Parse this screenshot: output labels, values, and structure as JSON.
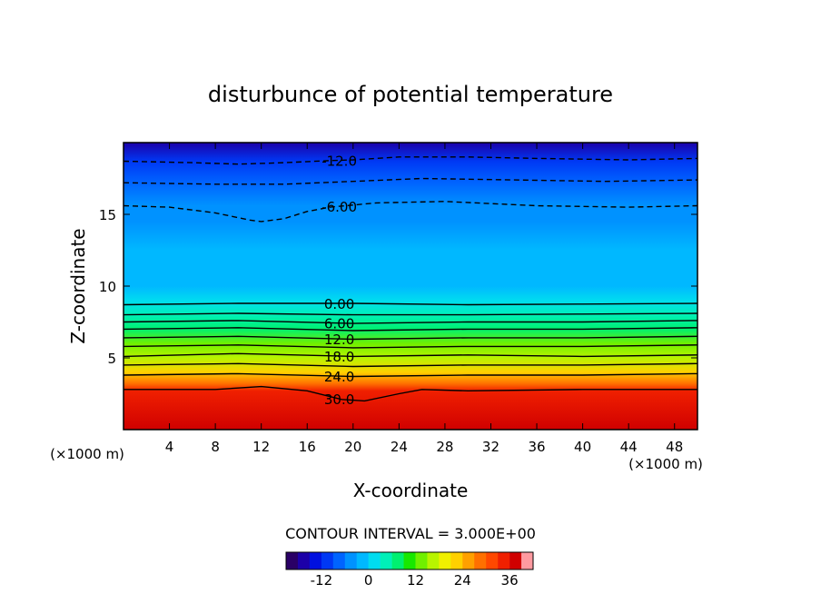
{
  "chart_data": {
    "type": "contour",
    "title": "disturbunce of potential temperature",
    "xlabel": "X-coordinate",
    "ylabel": "Z-coordinate",
    "x_unit_left": "(×1000 m)",
    "x_unit_right": "(×1000 m)",
    "xlim": [
      0,
      50
    ],
    "ylim": [
      0,
      20
    ],
    "x_ticks": [
      4,
      8,
      12,
      16,
      20,
      24,
      28,
      32,
      36,
      40,
      44,
      48
    ],
    "y_ticks": [
      5,
      10,
      15
    ],
    "contour_interval_text": "CONTOUR INTERVAL = 3.000E+00",
    "contour_interval": 3,
    "colorbar": {
      "range": [
        -21,
        42
      ],
      "ticks": [
        -12,
        0,
        12,
        24,
        36
      ],
      "colors": [
        "#2a0066",
        "#1c00a8",
        "#0010e0",
        "#0038f4",
        "#0064ff",
        "#0092ff",
        "#00b8ff",
        "#00dcf0",
        "#00f0b8",
        "#00f070",
        "#18e800",
        "#70f000",
        "#b8f400",
        "#f0f000",
        "#ffd000",
        "#ffa000",
        "#ff7000",
        "#ff4800",
        "#f02000",
        "#d00000",
        "#ff9aa0"
      ]
    },
    "contour_lines": [
      {
        "label": "-12.0",
        "value": -12,
        "dashed": true,
        "points": [
          [
            0,
            18.7
          ],
          [
            6,
            18.6
          ],
          [
            10,
            18.5
          ],
          [
            14,
            18.6
          ],
          [
            18,
            18.75
          ],
          [
            20,
            18.8
          ],
          [
            24,
            19.0
          ],
          [
            30,
            19.0
          ],
          [
            36,
            18.9
          ],
          [
            44,
            18.8
          ],
          [
            50,
            18.9
          ]
        ]
      },
      {
        "label": "",
        "value": -9,
        "dashed": true,
        "points": [
          [
            0,
            17.2
          ],
          [
            8,
            17.1
          ],
          [
            14,
            17.1
          ],
          [
            20,
            17.3
          ],
          [
            26,
            17.5
          ],
          [
            34,
            17.4
          ],
          [
            42,
            17.3
          ],
          [
            50,
            17.4
          ]
        ]
      },
      {
        "label": "-6.00",
        "value": -6,
        "dashed": true,
        "points": [
          [
            0,
            15.6
          ],
          [
            4,
            15.5
          ],
          [
            8,
            15.1
          ],
          [
            11,
            14.6
          ],
          [
            12,
            14.5
          ],
          [
            14,
            14.7
          ],
          [
            16,
            15.2
          ],
          [
            18,
            15.5
          ],
          [
            22,
            15.8
          ],
          [
            28,
            15.9
          ],
          [
            36,
            15.6
          ],
          [
            44,
            15.5
          ],
          [
            50,
            15.6
          ]
        ]
      },
      {
        "label": "0.00",
        "value": 0,
        "dashed": false,
        "points": [
          [
            0,
            8.7
          ],
          [
            10,
            8.8
          ],
          [
            20,
            8.8
          ],
          [
            30,
            8.7
          ],
          [
            40,
            8.75
          ],
          [
            50,
            8.8
          ]
        ]
      },
      {
        "label": "",
        "value": 3,
        "dashed": false,
        "points": [
          [
            0,
            8.0
          ],
          [
            10,
            8.1
          ],
          [
            20,
            8.0
          ],
          [
            30,
            8.0
          ],
          [
            40,
            8.05
          ],
          [
            50,
            8.1
          ]
        ]
      },
      {
        "label": "6.00",
        "value": 6,
        "dashed": false,
        "points": [
          [
            0,
            7.5
          ],
          [
            10,
            7.6
          ],
          [
            20,
            7.4
          ],
          [
            30,
            7.5
          ],
          [
            40,
            7.5
          ],
          [
            50,
            7.6
          ]
        ]
      },
      {
        "label": "",
        "value": 9,
        "dashed": false,
        "points": [
          [
            0,
            7.0
          ],
          [
            10,
            7.1
          ],
          [
            20,
            6.9
          ],
          [
            30,
            7.0
          ],
          [
            40,
            7.0
          ],
          [
            50,
            7.1
          ]
        ]
      },
      {
        "label": "12.0",
        "value": 12,
        "dashed": false,
        "points": [
          [
            0,
            6.4
          ],
          [
            10,
            6.5
          ],
          [
            20,
            6.3
          ],
          [
            30,
            6.4
          ],
          [
            40,
            6.4
          ],
          [
            50,
            6.5
          ]
        ]
      },
      {
        "label": "",
        "value": 15,
        "dashed": false,
        "points": [
          [
            0,
            5.8
          ],
          [
            10,
            5.9
          ],
          [
            20,
            5.7
          ],
          [
            30,
            5.8
          ],
          [
            40,
            5.8
          ],
          [
            50,
            5.9
          ]
        ]
      },
      {
        "label": "18.0",
        "value": 18,
        "dashed": false,
        "points": [
          [
            0,
            5.1
          ],
          [
            10,
            5.3
          ],
          [
            20,
            5.1
          ],
          [
            30,
            5.2
          ],
          [
            40,
            5.1
          ],
          [
            50,
            5.2
          ]
        ]
      },
      {
        "label": "",
        "value": 21,
        "dashed": false,
        "points": [
          [
            0,
            4.5
          ],
          [
            10,
            4.6
          ],
          [
            20,
            4.4
          ],
          [
            30,
            4.5
          ],
          [
            40,
            4.5
          ],
          [
            50,
            4.6
          ]
        ]
      },
      {
        "label": "24.0",
        "value": 24,
        "dashed": false,
        "points": [
          [
            0,
            3.8
          ],
          [
            10,
            3.9
          ],
          [
            20,
            3.7
          ],
          [
            30,
            3.8
          ],
          [
            40,
            3.8
          ],
          [
            50,
            3.9
          ]
        ]
      },
      {
        "label": "30.0",
        "value": 30,
        "dashed": false,
        "points": [
          [
            0,
            2.8
          ],
          [
            8,
            2.8
          ],
          [
            12,
            3.0
          ],
          [
            16,
            2.7
          ],
          [
            19,
            2.1
          ],
          [
            21,
            2.0
          ],
          [
            24,
            2.5
          ],
          [
            26,
            2.8
          ],
          [
            30,
            2.7
          ],
          [
            40,
            2.8
          ],
          [
            50,
            2.8
          ]
        ]
      }
    ],
    "field_profile": [
      {
        "z": 0,
        "value": 36
      },
      {
        "z": 2.7,
        "value": 33
      },
      {
        "z": 3.2,
        "value": 27
      },
      {
        "z": 4.0,
        "value": 22
      },
      {
        "z": 5.0,
        "value": 17
      },
      {
        "z": 6.0,
        "value": 12
      },
      {
        "z": 7.0,
        "value": 7
      },
      {
        "z": 8.0,
        "value": 3
      },
      {
        "z": 9.0,
        "value": 0
      },
      {
        "z": 10.0,
        "value": -2
      },
      {
        "z": 12.5,
        "value": -3
      },
      {
        "z": 14.5,
        "value": -4
      },
      {
        "z": 15.6,
        "value": -6
      },
      {
        "z": 17.2,
        "value": -9
      },
      {
        "z": 18.7,
        "value": -12
      },
      {
        "z": 20.0,
        "value": -16
      }
    ]
  }
}
